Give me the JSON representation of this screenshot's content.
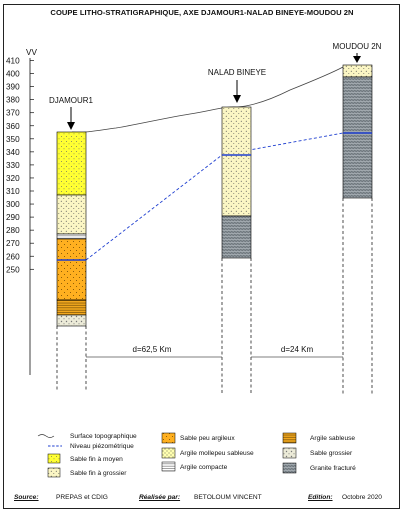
{
  "title": "COUPE LITHO-STRATIGRAPHIQUE, AXE DJAMOUR1-NALAD BINEYE-MOUDOU 2N",
  "axis": {
    "unit_label": "VV",
    "ticks": [
      "410",
      "400",
      "390",
      "380",
      "370",
      "360",
      "350",
      "340",
      "330",
      "320",
      "310",
      "300",
      "290",
      "280",
      "270",
      "260",
      "250"
    ]
  },
  "wells": [
    {
      "name": "DJAMOUR1"
    },
    {
      "name": "NALAD BINEYE"
    },
    {
      "name": "MOUDOU 2N"
    }
  ],
  "distances": [
    "d=62,5 Km",
    "d=24 Km"
  ],
  "legend": {
    "surface": "Surface topographique",
    "piezo": "Niveau piézométrique",
    "sable_fin_moyen": "Sable fin à moyen",
    "sable_fin_grossier": "Sable fin à grossier",
    "sable_peu_argileux": "Sable peu argileux",
    "argile_molle": "Argile mollepeu sableuse",
    "argile_compacte": "Argile compacte",
    "argile_sableuse": "Argile sableuse",
    "sable_grossier": "Sable grossier",
    "granite": "Granite fracturé"
  },
  "footer": {
    "source_key": "Source:",
    "source_val": "PREPAS et CDIG",
    "real_key": "Réalisée par:",
    "real_val": "BETOLOUM VINCENT",
    "edition_key": "Edition:",
    "edition_val": "Octobre 2020"
  },
  "colors": {
    "sable_fin_moyen": "#ffff33",
    "sable_fin_grossier": "#ffffcc",
    "sable_peu_argileux": "#ffb020",
    "argile_compacte": "#ffffff",
    "argile_sableuse": "#f0a820",
    "sable_grossier": "#eeeedd",
    "granite": "#8a9298",
    "piezo": "#1f3fd0"
  }
}
